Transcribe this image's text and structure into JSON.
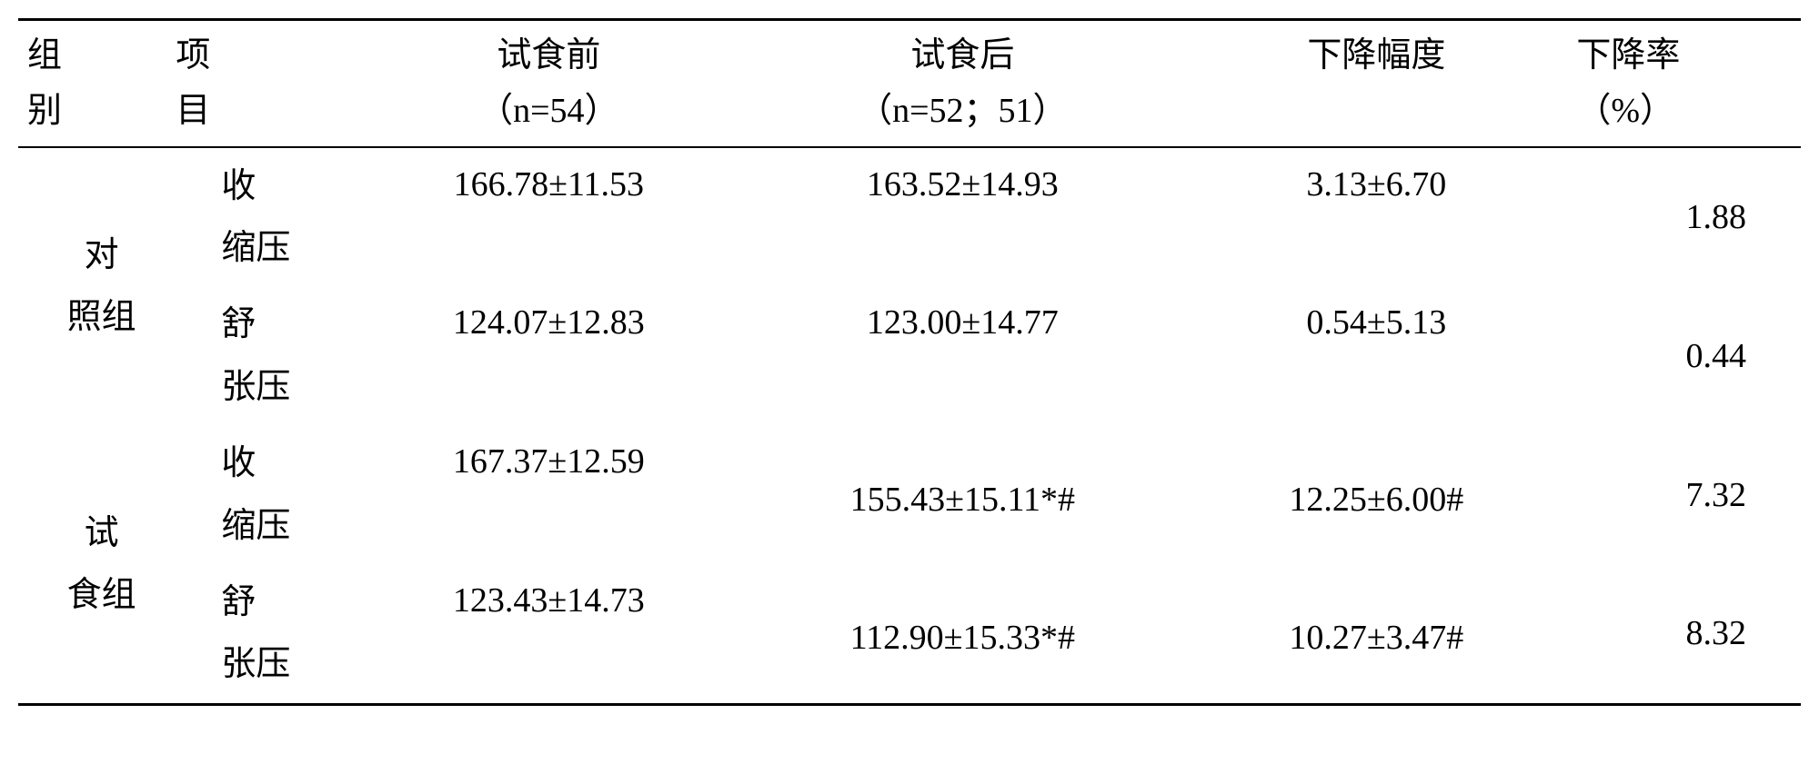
{
  "headers": {
    "group": "组\n别",
    "item": "项\n目",
    "pre": "试食前\n（n=54）",
    "post": "试食后\n（n=52；51）",
    "diff": "下降幅度",
    "rate": "下降率\n（%）"
  },
  "rows": [
    {
      "group": "对\n照组",
      "item1": "收\n缩压",
      "pre1": "166.78±11.53",
      "post1": "163.52±14.93",
      "diff1": "3.13±6.70",
      "rate1": "1.88",
      "item2": "舒\n张压",
      "pre2": "124.07±12.83",
      "post2": "123.00±14.77",
      "diff2": "0.54±5.13",
      "rate2": "0.44"
    },
    {
      "group": "试\n食组",
      "item1": "收\n缩压",
      "pre1": "167.37±12.59",
      "post1": "155.43±15.11*#",
      "diff1": "12.25±6.00#",
      "rate1": "7.32",
      "item2": "舒\n张压",
      "pre2": "123.43±14.73",
      "post2": "112.90±15.33*#",
      "diff2": "10.27±3.47#",
      "rate2": "8.32"
    }
  ]
}
